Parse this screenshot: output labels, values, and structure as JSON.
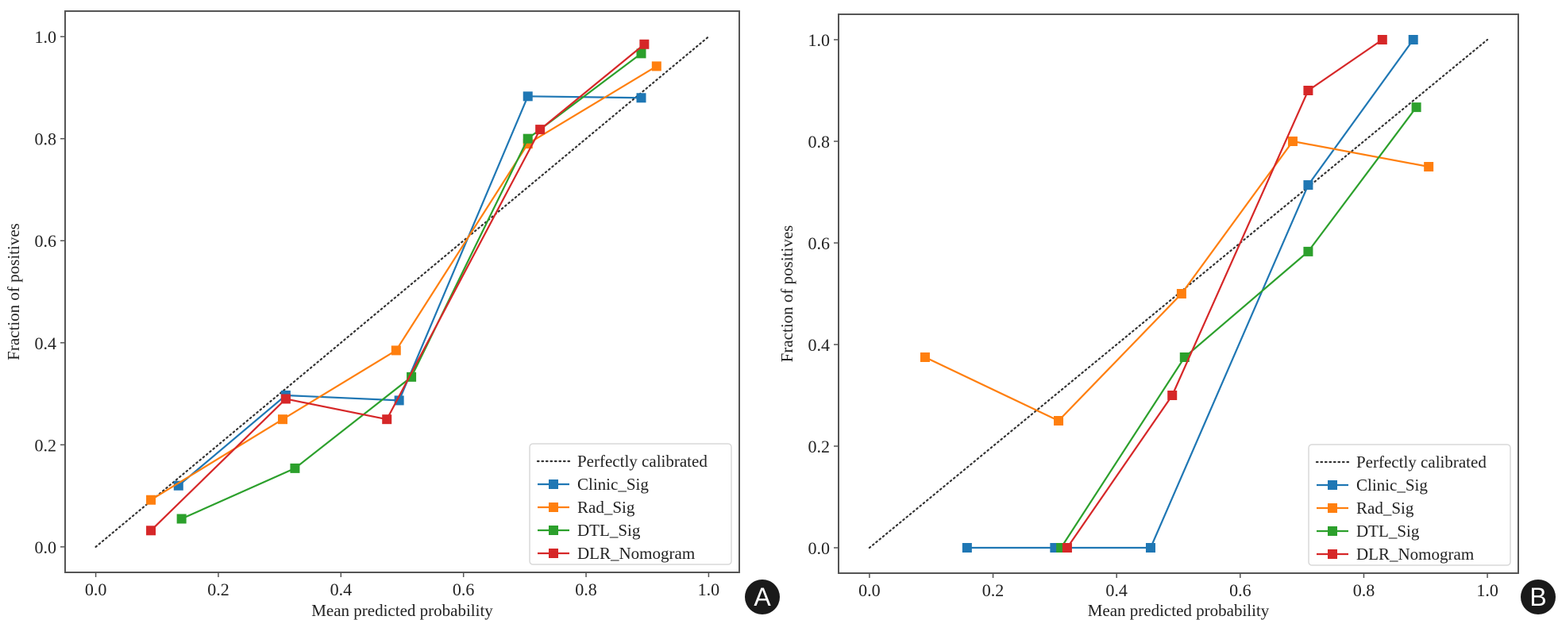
{
  "chart_data": [
    {
      "type": "line",
      "panel_label": "A",
      "title": "",
      "xlabel": "Mean predicted probability",
      "ylabel": "Fraction of positives",
      "xlim": [
        -0.05,
        1.05
      ],
      "ylim": [
        -0.05,
        1.05
      ],
      "xticks": [
        "0.0",
        "0.2",
        "0.4",
        "0.6",
        "0.8",
        "1.0"
      ],
      "yticks": [
        "0.0",
        "0.2",
        "0.4",
        "0.6",
        "0.8",
        "1.0"
      ],
      "grid": false,
      "legend_position": "bottom-right",
      "reference": {
        "name": "Perfectly calibrated",
        "x": [
          0,
          1
        ],
        "y": [
          0,
          1
        ],
        "color": "#333333",
        "style": "dotted"
      },
      "series": [
        {
          "name": "Clinic_Sig",
          "color": "#1f77b4",
          "x": [
            0.135,
            0.31,
            0.495,
            0.705,
            0.89
          ],
          "y": [
            0.12,
            0.297,
            0.287,
            0.883,
            0.88
          ]
        },
        {
          "name": "Rad_Sig",
          "color": "#ff7f0e",
          "x": [
            0.09,
            0.305,
            0.49,
            0.705,
            0.915
          ],
          "y": [
            0.092,
            0.25,
            0.385,
            0.79,
            0.942
          ]
        },
        {
          "name": "DTL_Sig",
          "color": "#2ca02c",
          "x": [
            0.14,
            0.325,
            0.515,
            0.705,
            0.89
          ],
          "y": [
            0.055,
            0.154,
            0.333,
            0.8,
            0.967
          ]
        },
        {
          "name": "DLR_Nomogram",
          "color": "#d62728",
          "x": [
            0.09,
            0.31,
            0.475,
            0.725,
            0.895
          ],
          "y": [
            0.032,
            0.29,
            0.25,
            0.818,
            0.985
          ]
        }
      ]
    },
    {
      "type": "line",
      "panel_label": "B",
      "title": "",
      "xlabel": "Mean predicted probability",
      "ylabel": "Fraction of positives",
      "xlim": [
        -0.05,
        1.05
      ],
      "ylim": [
        -0.05,
        1.05
      ],
      "xticks": [
        "0.0",
        "0.2",
        "0.4",
        "0.6",
        "0.8",
        "1.0"
      ],
      "yticks": [
        "0.0",
        "0.2",
        "0.4",
        "0.6",
        "0.8",
        "1.0"
      ],
      "grid": false,
      "legend_position": "bottom-right",
      "reference": {
        "name": "Perfectly calibrated",
        "x": [
          0,
          1
        ],
        "y": [
          0,
          1
        ],
        "color": "#333333",
        "style": "dotted"
      },
      "series": [
        {
          "name": "Clinic_Sig",
          "color": "#1f77b4",
          "x": [
            0.158,
            0.3,
            0.455,
            0.71,
            0.88
          ],
          "y": [
            0.0,
            0.0,
            0.0,
            0.714,
            1.0
          ]
        },
        {
          "name": "Rad_Sig",
          "color": "#ff7f0e",
          "x": [
            0.09,
            0.306,
            0.505,
            0.685,
            0.905
          ],
          "y": [
            0.375,
            0.25,
            0.5,
            0.8,
            0.75
          ]
        },
        {
          "name": "DTL_Sig",
          "color": "#2ca02c",
          "x": [
            0.31,
            0.51,
            0.71,
            0.885
          ],
          "y": [
            0.0,
            0.375,
            0.583,
            0.867
          ]
        },
        {
          "name": "DLR_Nomogram",
          "color": "#d62728",
          "x": [
            0.32,
            0.49,
            0.71,
            0.83
          ],
          "y": [
            0.0,
            0.3,
            0.9,
            1.0
          ]
        }
      ]
    }
  ]
}
